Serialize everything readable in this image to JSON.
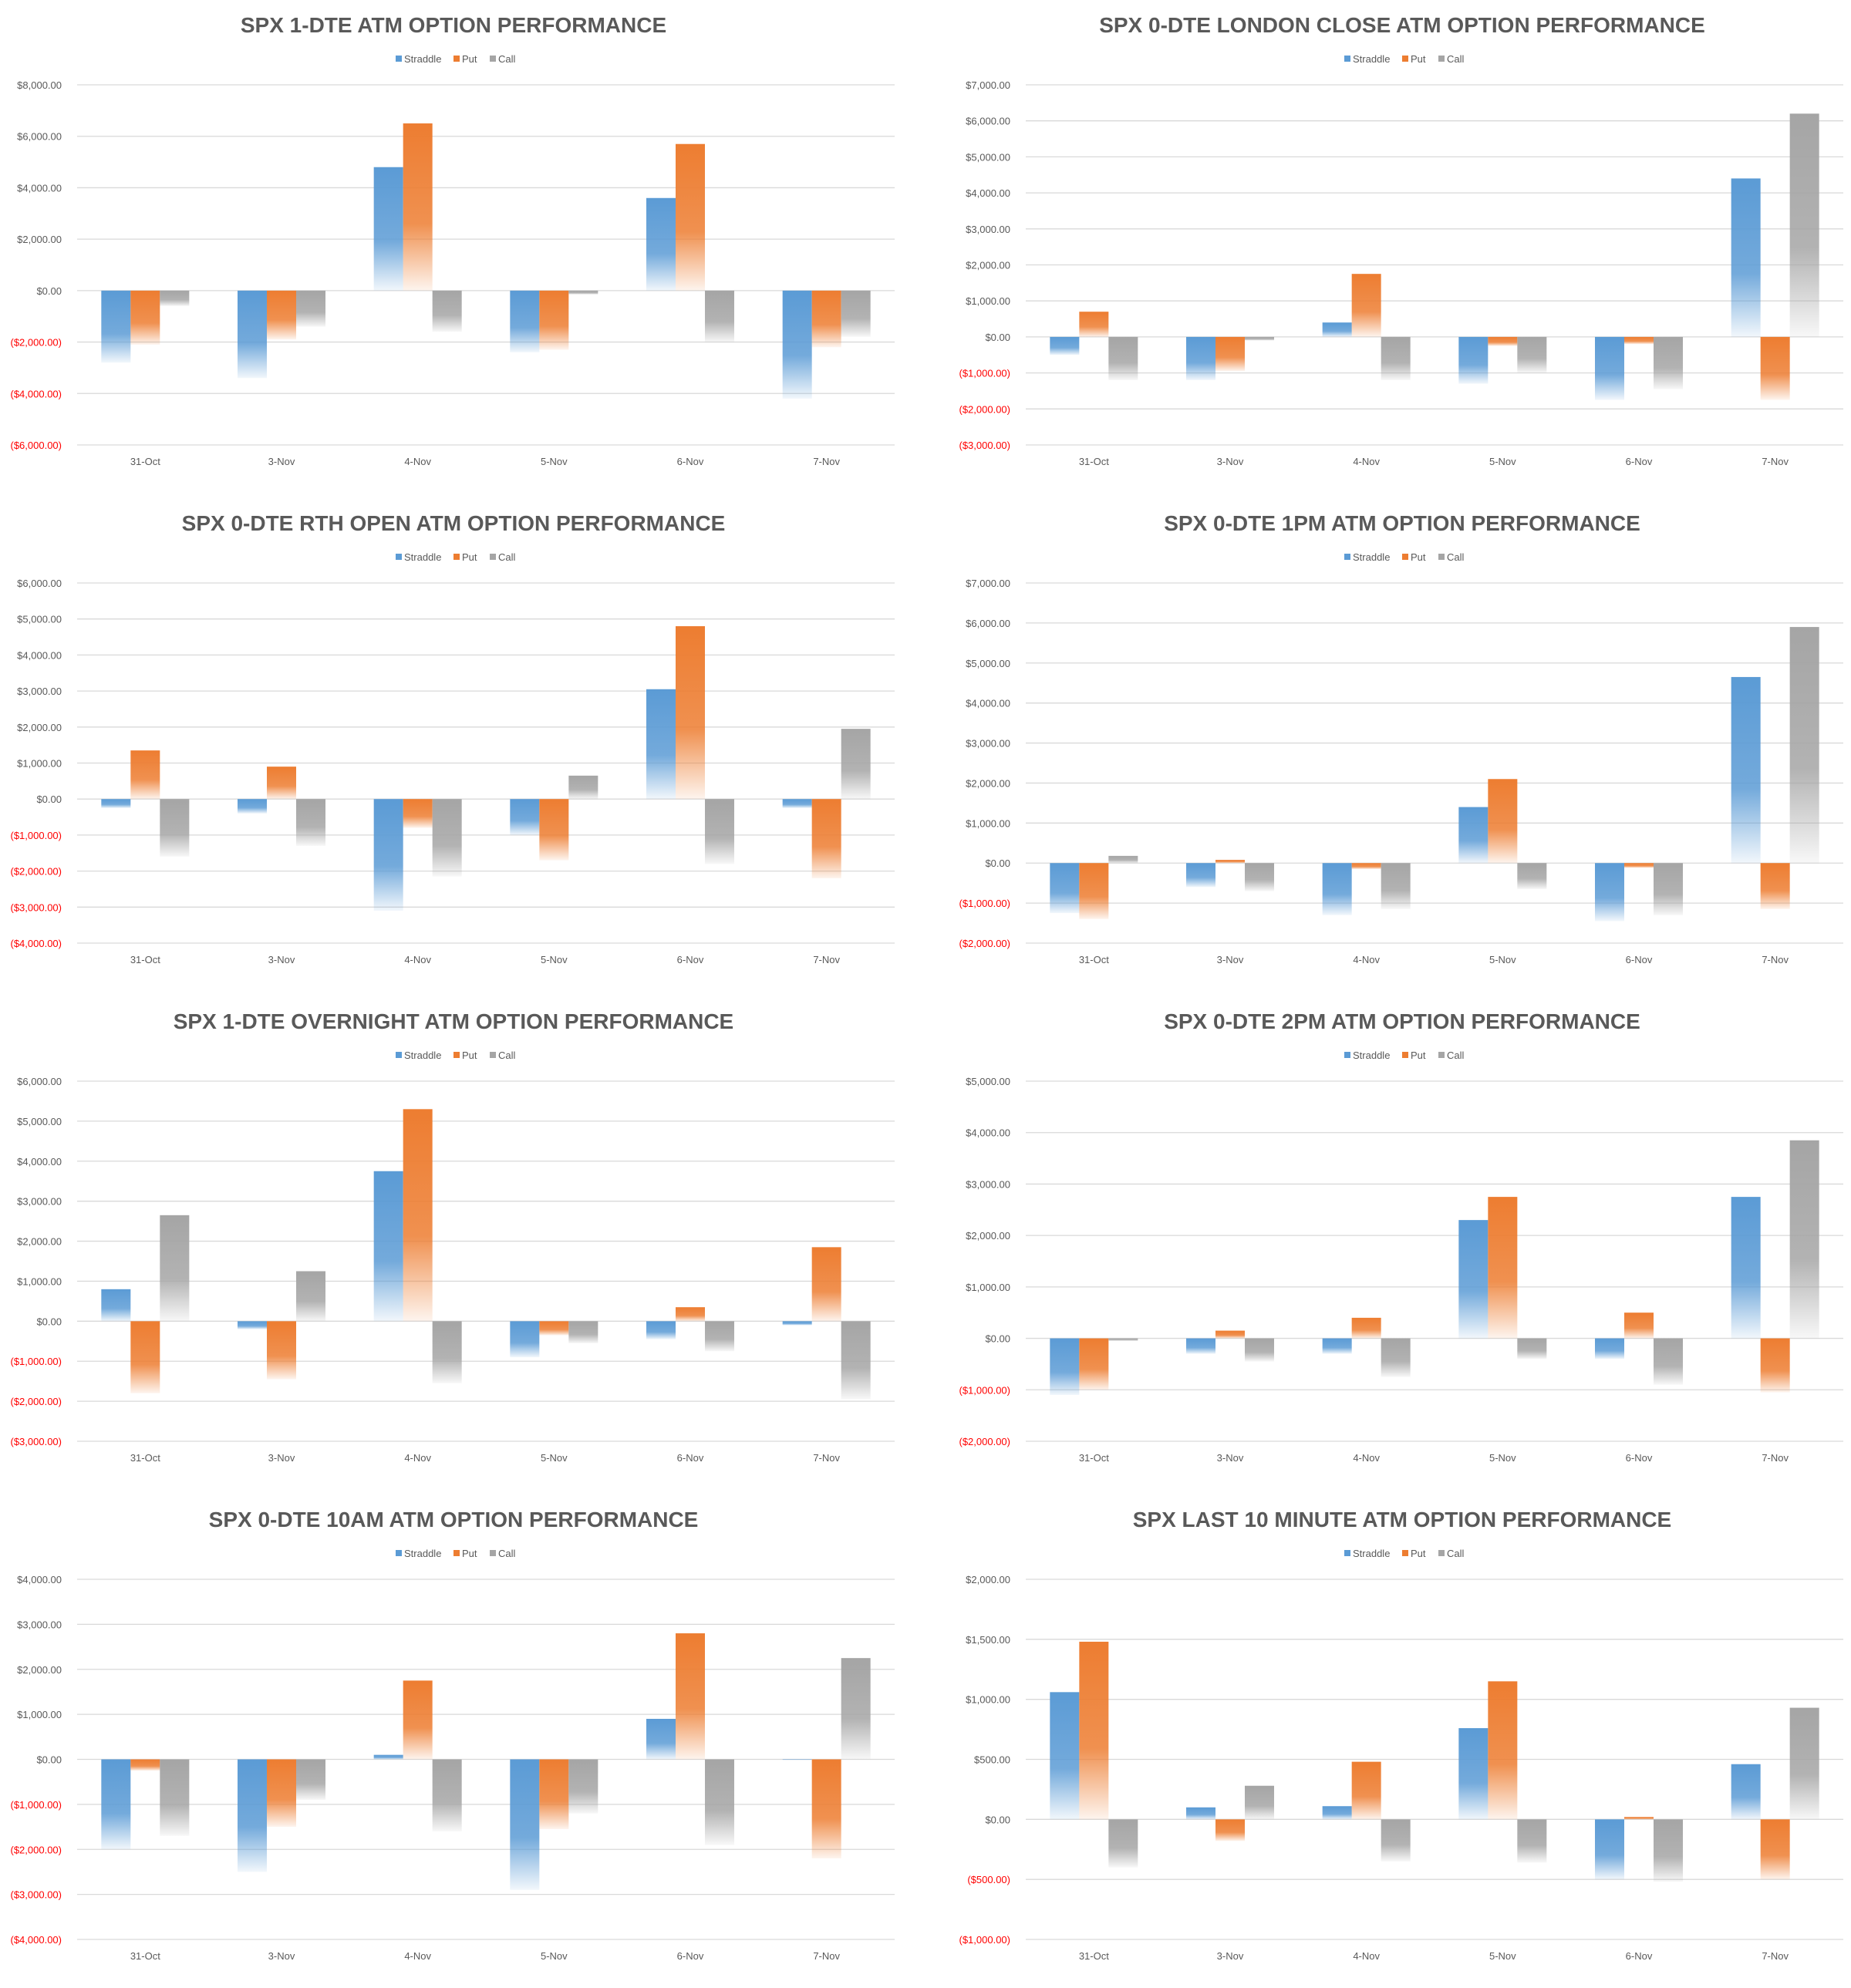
{
  "colors": {
    "straddle": "#5b9bd5",
    "put": "#ed7d31",
    "call": "#a5a5a5",
    "negative_tick": "#ff0000",
    "tick": "#595959",
    "grid": "#d9d9d9"
  },
  "chart_data": [
    {
      "type": "bar",
      "title": "SPX 1-DTE ATM OPTION PERFORMANCE",
      "categories": [
        "31-Oct",
        "3-Nov",
        "4-Nov",
        "5-Nov",
        "6-Nov",
        "7-Nov"
      ],
      "series": [
        {
          "name": "Straddle",
          "values": [
            -2800,
            -3400,
            4800,
            -2400,
            3600,
            -4200
          ]
        },
        {
          "name": "Put",
          "values": [
            -2100,
            -1900,
            6500,
            -2300,
            5700,
            -2200
          ]
        },
        {
          "name": "Call",
          "values": [
            -600,
            -1400,
            -1600,
            -150,
            -2000,
            -1800
          ]
        }
      ],
      "yticks": [
        "$8,000.00",
        "$6,000.00",
        "$4,000.00",
        "$2,000.00",
        "$0.00",
        "($2,000.00)",
        "($4,000.00)",
        "($6,000.00)"
      ],
      "ylim": [
        -6000,
        8000
      ],
      "ystep": 2000,
      "grid": true,
      "legend": "top-center"
    },
    {
      "type": "bar",
      "title": "SPX 0-DTE  LONDON CLOSE ATM OPTION PERFORMANCE",
      "categories": [
        "31-Oct",
        "3-Nov",
        "4-Nov",
        "5-Nov",
        "6-Nov",
        "7-Nov"
      ],
      "series": [
        {
          "name": "Straddle",
          "values": [
            -500,
            -1200,
            400,
            -1300,
            -1750,
            4400
          ]
        },
        {
          "name": "Put",
          "values": [
            700,
            -950,
            1750,
            -250,
            -200,
            -1750
          ]
        },
        {
          "name": "Call",
          "values": [
            -1200,
            -100,
            -1200,
            -1000,
            -1450,
            6200
          ]
        }
      ],
      "yticks": [
        "$7,000.00",
        "$6,000.00",
        "$5,000.00",
        "$4,000.00",
        "$3,000.00",
        "$2,000.00",
        "$1,000.00",
        "$0.00",
        "($1,000.00)",
        "($2,000.00)",
        "($3,000.00)"
      ],
      "ylim": [
        -3000,
        7000
      ],
      "ystep": 1000,
      "grid": true,
      "legend": "top-center"
    },
    {
      "type": "bar",
      "title": "SPX 0-DTE RTH OPEN ATM OPTION PERFORMANCE",
      "categories": [
        "31-Oct",
        "3-Nov",
        "4-Nov",
        "5-Nov",
        "6-Nov",
        "7-Nov"
      ],
      "series": [
        {
          "name": "Straddle",
          "values": [
            -250,
            -400,
            -3100,
            -1000,
            3050,
            -250
          ]
        },
        {
          "name": "Put",
          "values": [
            1350,
            900,
            -800,
            -1700,
            4800,
            -2200
          ]
        },
        {
          "name": "Call",
          "values": [
            -1600,
            -1300,
            -2150,
            650,
            -1800,
            1950
          ]
        }
      ],
      "yticks": [
        "$6,000.00",
        "$5,000.00",
        "$4,000.00",
        "$3,000.00",
        "$2,000.00",
        "$1,000.00",
        "$0.00",
        "($1,000.00)",
        "($2,000.00)",
        "($3,000.00)",
        "($4,000.00)"
      ],
      "ylim": [
        -4000,
        6000
      ],
      "ystep": 1000,
      "grid": true,
      "legend": "top-center"
    },
    {
      "type": "bar",
      "title": "SPX 0-DTE 1PM ATM OPTION PERFORMANCE",
      "categories": [
        "31-Oct",
        "3-Nov",
        "4-Nov",
        "5-Nov",
        "6-Nov",
        "7-Nov"
      ],
      "series": [
        {
          "name": "Straddle",
          "values": [
            -1250,
            -600,
            -1300,
            1400,
            -1450,
            4650
          ]
        },
        {
          "name": "Put",
          "values": [
            -1400,
            80,
            -150,
            2100,
            -120,
            -1150
          ]
        },
        {
          "name": "Call",
          "values": [
            180,
            -700,
            -1150,
            -650,
            -1300,
            5900
          ]
        }
      ],
      "yticks": [
        "$7,000.00",
        "$6,000.00",
        "$5,000.00",
        "$4,000.00",
        "$3,000.00",
        "$2,000.00",
        "$1,000.00",
        "$0.00",
        "($1,000.00)",
        "($2,000.00)"
      ],
      "ylim": [
        -2000,
        7000
      ],
      "ystep": 1000,
      "grid": true,
      "legend": "top-center"
    },
    {
      "type": "bar",
      "title": "SPX 1-DTE OVERNIGHT ATM OPTION PERFORMANCE",
      "categories": [
        "31-Oct",
        "3-Nov",
        "4-Nov",
        "5-Nov",
        "6-Nov",
        "7-Nov"
      ],
      "series": [
        {
          "name": "Straddle",
          "values": [
            800,
            -200,
            3750,
            -900,
            -450,
            -100
          ]
        },
        {
          "name": "Put",
          "values": [
            -1800,
            -1450,
            5300,
            -350,
            350,
            1850
          ]
        },
        {
          "name": "Call",
          "values": [
            2650,
            1250,
            -1550,
            -550,
            -750,
            -1950
          ]
        }
      ],
      "yticks": [
        "$6,000.00",
        "$5,000.00",
        "$4,000.00",
        "$3,000.00",
        "$2,000.00",
        "$1,000.00",
        "$0.00",
        "($1,000.00)",
        "($2,000.00)",
        "($3,000.00)"
      ],
      "ylim": [
        -3000,
        6000
      ],
      "ystep": 1000,
      "grid": true,
      "legend": "top-center"
    },
    {
      "type": "bar",
      "title": "SPX 0-DTE 2PM ATM OPTION PERFORMANCE",
      "categories": [
        "31-Oct",
        "3-Nov",
        "4-Nov",
        "5-Nov",
        "6-Nov",
        "7-Nov"
      ],
      "series": [
        {
          "name": "Straddle",
          "values": [
            -1100,
            -300,
            -300,
            2300,
            -400,
            2750
          ]
        },
        {
          "name": "Put",
          "values": [
            -1000,
            150,
            400,
            2750,
            500,
            -1050
          ]
        },
        {
          "name": "Call",
          "values": [
            -50,
            -450,
            -750,
            -400,
            -900,
            3850
          ]
        }
      ],
      "yticks": [
        "$5,000.00",
        "$4,000.00",
        "$3,000.00",
        "$2,000.00",
        "$1,000.00",
        "$0.00",
        "($1,000.00)",
        "($2,000.00)"
      ],
      "ylim": [
        -2000,
        5000
      ],
      "ystep": 1000,
      "grid": true,
      "legend": "top-center"
    },
    {
      "type": "bar",
      "title": "SPX 0-DTE 10AM ATM OPTION PERFORMANCE",
      "categories": [
        "31-Oct",
        "3-Nov",
        "4-Nov",
        "5-Nov",
        "6-Nov",
        "7-Nov"
      ],
      "series": [
        {
          "name": "Straddle",
          "values": [
            -2000,
            -2500,
            100,
            -2900,
            900,
            0
          ]
        },
        {
          "name": "Put",
          "values": [
            -250,
            -1500,
            1750,
            -1550,
            2800,
            -2200
          ]
        },
        {
          "name": "Call",
          "values": [
            -1700,
            -900,
            -1600,
            -1200,
            -1900,
            2250
          ]
        }
      ],
      "yticks": [
        "$4,000.00",
        "$3,000.00",
        "$2,000.00",
        "$1,000.00",
        "$0.00",
        "($1,000.00)",
        "($2,000.00)",
        "($3,000.00)",
        "($4,000.00)"
      ],
      "ylim": [
        -4000,
        4000
      ],
      "ystep": 1000,
      "grid": true,
      "legend": "top-center"
    },
    {
      "type": "bar",
      "title": "SPX LAST 10 MINUTE ATM OPTION PERFORMANCE",
      "categories": [
        "31-Oct",
        "3-Nov",
        "4-Nov",
        "5-Nov",
        "6-Nov",
        "7-Nov"
      ],
      "series": [
        {
          "name": "Straddle",
          "values": [
            1060,
            100,
            110,
            760,
            -500,
            460
          ]
        },
        {
          "name": "Put",
          "values": [
            1480,
            -180,
            480,
            1150,
            20,
            -500
          ]
        },
        {
          "name": "Call",
          "values": [
            -400,
            280,
            -350,
            -360,
            -520,
            930
          ]
        }
      ],
      "yticks": [
        "$2,000.00",
        "$1,500.00",
        "$1,000.00",
        "$500.00",
        "$0.00",
        "($500.00)",
        "($1,000.00)"
      ],
      "ylim": [
        -1000,
        2000
      ],
      "ystep": 500,
      "grid": true,
      "legend": "top-center"
    }
  ]
}
